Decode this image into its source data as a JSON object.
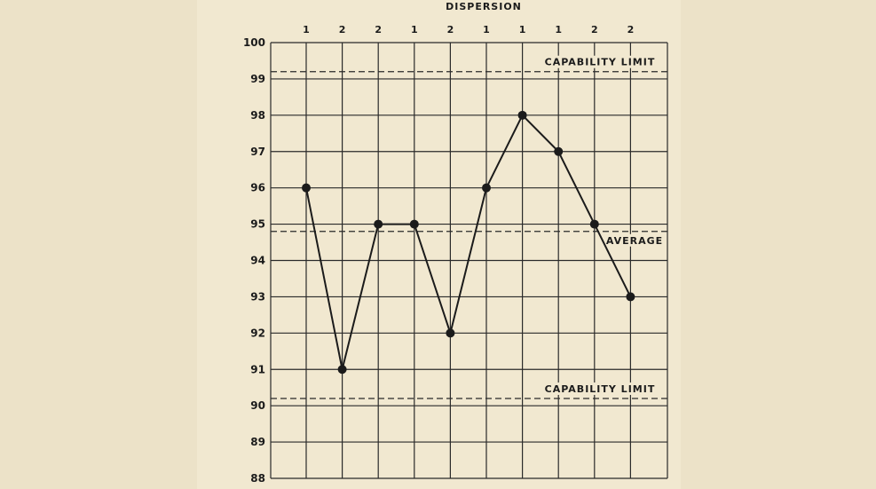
{
  "chart_data": {
    "type": "line",
    "title": "DISPERSION",
    "top_labels": [
      "1",
      "2",
      "2",
      "1",
      "2",
      "1",
      "1",
      "1",
      "2",
      "2"
    ],
    "values": [
      96,
      91,
      95,
      95,
      92,
      96,
      98,
      97,
      95,
      93
    ],
    "y_ticks": [
      "88",
      "89",
      "90",
      "91",
      "92",
      "93",
      "94",
      "95",
      "96",
      "97",
      "98",
      "99",
      "100"
    ],
    "ylim": [
      88,
      100
    ],
    "grid": true,
    "reference_lines": [
      {
        "label": "CAPABILITY LIMIT",
        "value": 99.2
      },
      {
        "label": "AVERAGE",
        "value": 94.8
      },
      {
        "label": "CAPABILITY LIMIT",
        "value": 90.2
      }
    ],
    "colors": {
      "line": "#1b1b1b",
      "grid": "#2a2a2a",
      "paper": "#f1e8d0",
      "background": "#ece2c8"
    }
  }
}
